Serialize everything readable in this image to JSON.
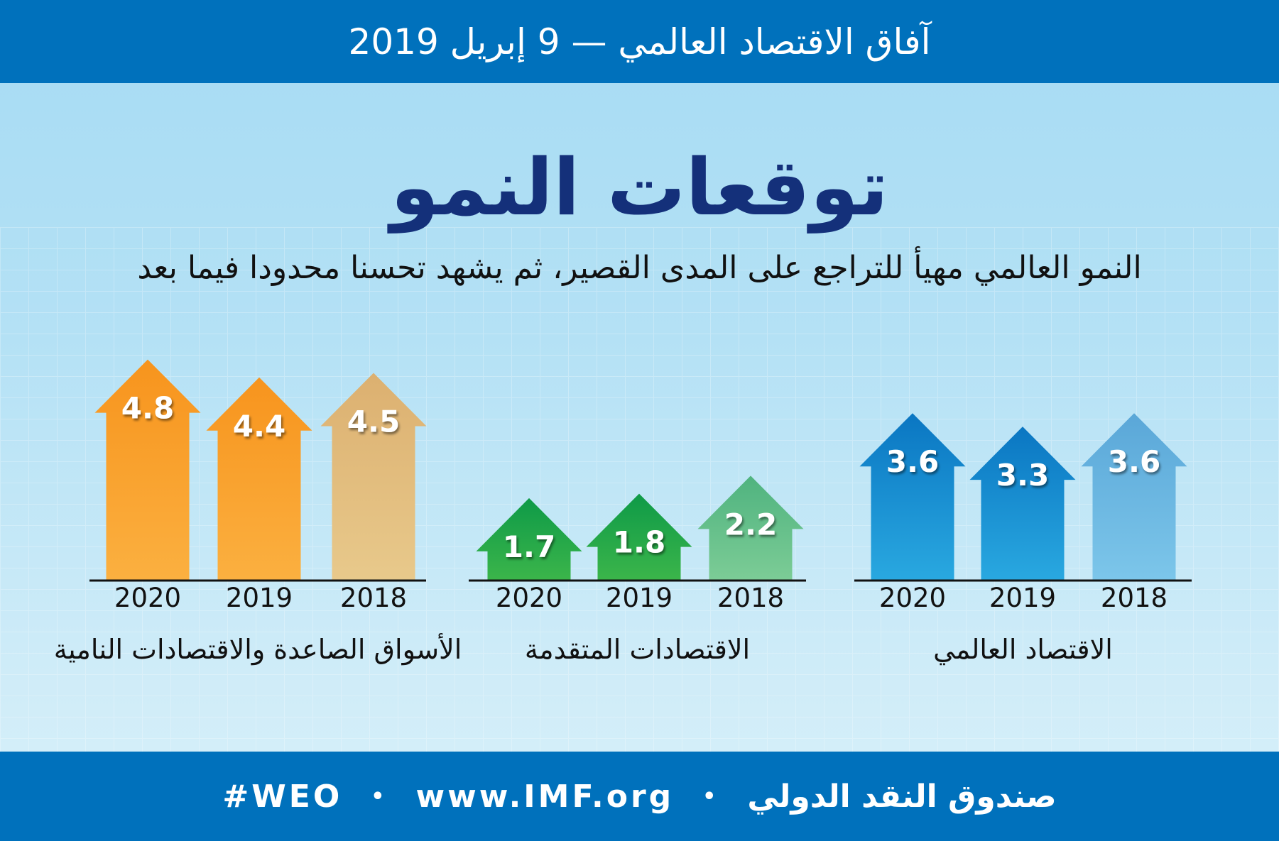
{
  "header": {
    "title": "آفاق الاقتصاد العالمي — 9 إبريل 2019"
  },
  "main": {
    "title": "توقعات النمو",
    "subtitle": "النمو العالمي مهيأ للتراجع على المدى القصير، ثم يشهد تحسنا محدودا فيما بعد"
  },
  "footer": {
    "org": "صندوق النقد الدولي",
    "separator": "•",
    "url": "www.IMF.org",
    "hashtag": "#WEO"
  },
  "colors": {
    "header_bg": "#0071bc",
    "title": "#14307a",
    "orange": "#f7941d",
    "green": "#0e9a48",
    "blue": "#0a76c2"
  },
  "chart_data": [
    {
      "type": "bar",
      "title": "الاقتصاد العالمي",
      "categories": [
        "2018",
        "2019",
        "2020"
      ],
      "values": [
        3.6,
        3.3,
        3.6
      ],
      "colors": [
        [
          "#5aa7d8",
          "#7cc6ea"
        ],
        [
          "#0a76c2",
          "#29a8e0"
        ],
        [
          "#0a76c2",
          "#29a8e0"
        ]
      ]
    },
    {
      "type": "bar",
      "title": "الاقتصادات المتقدمة",
      "categories": [
        "2018",
        "2019",
        "2020"
      ],
      "values": [
        2.2,
        1.8,
        1.7
      ],
      "colors": [
        [
          "#4fb37f",
          "#7ccc96"
        ],
        [
          "#0e9a48",
          "#3bb54a"
        ],
        [
          "#0e9a48",
          "#3bb54a"
        ]
      ]
    },
    {
      "type": "bar",
      "title": "الأسواق الصاعدة والاقتصادات النامية",
      "categories": [
        "2018",
        "2019",
        "2020"
      ],
      "values": [
        4.5,
        4.4,
        4.8
      ],
      "colors": [
        [
          "#dcb070",
          "#e8c98b"
        ],
        [
          "#f7941d",
          "#fbb040"
        ],
        [
          "#f7941d",
          "#fbb040"
        ]
      ]
    }
  ]
}
